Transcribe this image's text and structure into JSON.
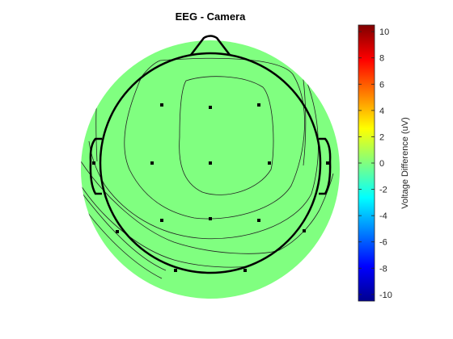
{
  "chart_data": {
    "type": "heatmap",
    "subtype": "eeg-topographic-map",
    "title": "EEG - Camera",
    "colormap": "jet",
    "fill_color": "#80ff80",
    "colorbar": {
      "label": "Voltage Difference (uV)",
      "range": [
        -10.5,
        10.5
      ],
      "ticks": [
        10,
        8,
        6,
        4,
        2,
        0,
        -2,
        -4,
        -6,
        -8,
        -10
      ],
      "location": "right"
    },
    "mapped_value": 0,
    "electrode_count": 15
  }
}
